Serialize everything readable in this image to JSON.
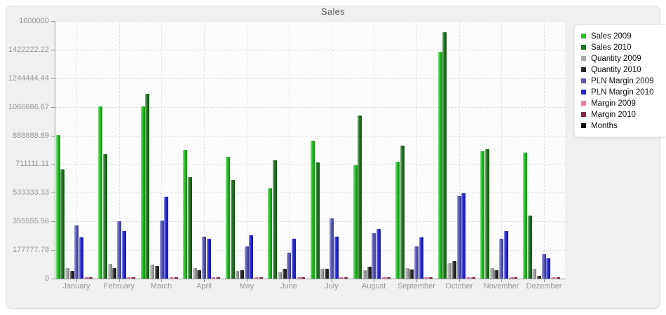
{
  "title": "Sales",
  "legend": {
    "items": [
      {
        "label": "Sales 2009",
        "color": "#1fc11f"
      },
      {
        "label": "Sales 2010",
        "color": "#1d721d"
      },
      {
        "label": "Quantity 2009",
        "color": "#a8a8a8"
      },
      {
        "label": "Quantity 2010",
        "color": "#262626"
      },
      {
        "label": "PLN Margin 2009",
        "color": "#5656b8"
      },
      {
        "label": "PLN Margin 2010",
        "color": "#2424d6"
      },
      {
        "label": "Margin 2009",
        "color": "#e878a8"
      },
      {
        "label": "Margin 2010",
        "color": "#8a2444"
      },
      {
        "label": "Months",
        "color": "#111111"
      }
    ]
  },
  "chart_data": {
    "type": "bar",
    "title": "Sales",
    "xlabel": "",
    "ylabel": "",
    "ylim": [
      0,
      1600000
    ],
    "grid": true,
    "legend_position": "right",
    "ytick_labels": [
      "1600000",
      "1422222.22",
      "1244444.44",
      "1066666.67",
      "888888.89",
      "711111.11",
      "533333.33",
      "355555.56",
      "177777.78",
      "0"
    ],
    "categories": [
      "January",
      "February",
      "March",
      "April",
      "May",
      "June",
      "July",
      "August",
      "September",
      "October",
      "November",
      "Dezember"
    ],
    "series": [
      {
        "name": "Sales 2009",
        "color": "#1fc11f",
        "values": [
          890000,
          1070000,
          1070000,
          800000,
          755000,
          560000,
          855000,
          705000,
          725000,
          1410000,
          790000,
          785000
        ]
      },
      {
        "name": "Sales 2010",
        "color": "#1d721d",
        "values": [
          680000,
          775000,
          1150000,
          630000,
          615000,
          735000,
          720000,
          1015000,
          825000,
          1530000,
          805000,
          390000
        ]
      },
      {
        "name": "Quantity 2009",
        "color": "#a8a8a8",
        "values": [
          65000,
          90000,
          88000,
          64000,
          48000,
          40000,
          62000,
          53000,
          65000,
          97000,
          67000,
          62000
        ]
      },
      {
        "name": "Quantity 2010",
        "color": "#262626",
        "values": [
          48000,
          66000,
          80000,
          53000,
          53000,
          62000,
          60000,
          75000,
          57000,
          110000,
          53000,
          18000
        ]
      },
      {
        "name": "PLN Margin 2009",
        "color": "#5656b8",
        "values": [
          330000,
          355000,
          360000,
          259000,
          202000,
          160000,
          373000,
          281000,
          202000,
          515000,
          250000,
          153000
        ]
      },
      {
        "name": "PLN Margin 2010",
        "color": "#2424d6",
        "values": [
          255000,
          295000,
          510000,
          250000,
          268000,
          250000,
          263000,
          311000,
          255000,
          530000,
          294000,
          128000
        ]
      },
      {
        "name": "Margin 2009",
        "color": "#e878a8",
        "values": [
          8000,
          8000,
          8000,
          8000,
          8000,
          8000,
          8000,
          8000,
          8000,
          8000,
          8000,
          8000
        ]
      },
      {
        "name": "Margin 2010",
        "color": "#8a2444",
        "values": [
          8000,
          8000,
          8000,
          8000,
          8000,
          8000,
          8000,
          8000,
          8000,
          8000,
          8000,
          8000
        ]
      },
      {
        "name": "Months",
        "color": "#111111",
        "values": [
          0,
          0,
          0,
          0,
          0,
          0,
          0,
          0,
          0,
          0,
          0,
          0
        ]
      }
    ]
  }
}
